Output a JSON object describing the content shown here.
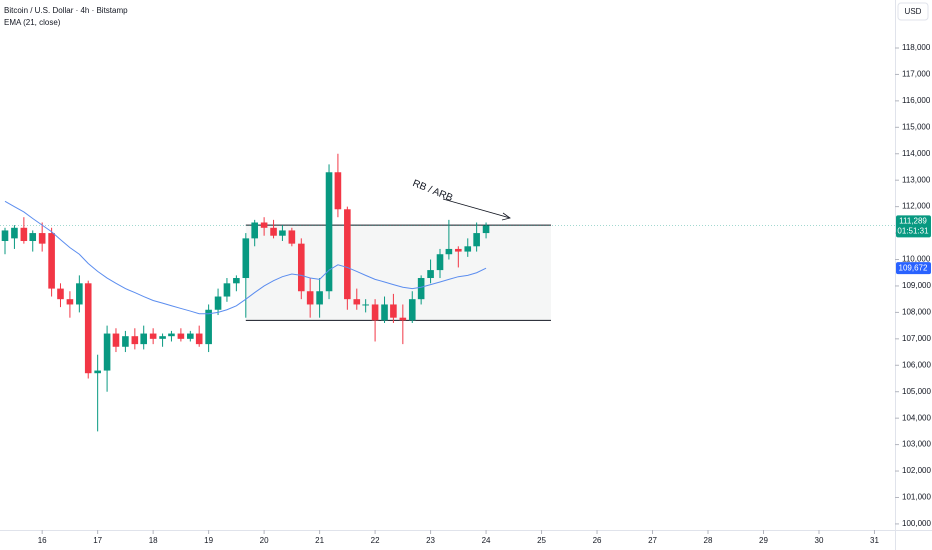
{
  "chart_data": {
    "type": "candlestick",
    "title": "Bitcoin / U.S. Dollar · 4h · Bitstamp",
    "currency": "USD",
    "x": [
      15.33,
      15.5,
      15.67,
      15.83,
      16,
      16.17,
      16.33,
      16.5,
      16.67,
      16.83,
      17,
      17.17,
      17.33,
      17.5,
      17.67,
      17.83,
      18,
      18.17,
      18.33,
      18.5,
      18.67,
      18.83,
      19,
      19.17,
      19.33,
      19.5,
      19.67,
      19.83,
      20,
      20.17,
      20.33,
      20.5,
      20.67,
      20.83,
      21,
      21.17,
      21.33,
      21.5,
      21.67,
      21.83,
      22,
      22.17,
      22.33,
      22.5,
      22.67,
      22.83,
      23,
      23.17,
      23.33,
      23.5,
      23.67,
      23.83,
      24
    ],
    "open": [
      110700,
      110800,
      111200,
      110700,
      111000,
      111000,
      108900,
      108500,
      108300,
      109100,
      105700,
      105800,
      107200,
      106700,
      107100,
      106800,
      107200,
      107000,
      107100,
      107200,
      107000,
      107200,
      106800,
      108100,
      108600,
      109100,
      109300,
      110800,
      111400,
      111200,
      110900,
      111100,
      110600,
      108800,
      108300,
      108800,
      113300,
      111900,
      108500,
      108300,
      108300,
      107700,
      108300,
      107800,
      107700,
      108500,
      109300,
      109600,
      110200,
      110400,
      110300,
      110500,
      111000
    ],
    "high": [
      111200,
      111300,
      111600,
      111100,
      111400,
      111200,
      109100,
      108800,
      109400,
      109200,
      106400,
      107500,
      107400,
      107300,
      107400,
      107500,
      107400,
      107200,
      107300,
      107400,
      107300,
      107500,
      108300,
      108900,
      109300,
      109400,
      111000,
      111500,
      111600,
      111500,
      111300,
      111200,
      110800,
      109300,
      109300,
      113600,
      114000,
      112000,
      108900,
      108500,
      108500,
      108600,
      108700,
      108300,
      108800,
      109400,
      110000,
      110400,
      111500,
      110500,
      110800,
      111400,
      111400
    ],
    "low": [
      110200,
      110400,
      110600,
      110300,
      110300,
      108600,
      108200,
      107800,
      108000,
      105500,
      103500,
      105000,
      106500,
      106500,
      106600,
      106600,
      106800,
      106700,
      106900,
      106900,
      106900,
      106700,
      106500,
      107900,
      108400,
      108800,
      107800,
      110500,
      110900,
      110800,
      110700,
      110500,
      108500,
      107800,
      107800,
      108500,
      111600,
      108100,
      108100,
      108000,
      106900,
      107600,
      107600,
      106800,
      107600,
      108300,
      109100,
      109300,
      110000,
      109700,
      110100,
      110300,
      110800
    ],
    "close": [
      111100,
      111200,
      110700,
      111000,
      110600,
      108900,
      108500,
      108300,
      109100,
      105700,
      105800,
      107200,
      106700,
      107100,
      106800,
      107200,
      107000,
      107100,
      107200,
      107000,
      107200,
      106800,
      108100,
      108600,
      109100,
      109300,
      110800,
      111400,
      111200,
      110900,
      111100,
      110600,
      108800,
      108300,
      108800,
      113300,
      111900,
      108500,
      108300,
      108300,
      107700,
      108300,
      107800,
      107700,
      108500,
      109300,
      109600,
      110200,
      110400,
      110300,
      110500,
      111000,
      111289
    ],
    "up_color": "#089981",
    "down_color": "#f23645",
    "overlays": [
      {
        "type": "line",
        "name": "EMA (21, close)",
        "color": "#5b8def",
        "values": [
          112200,
          112000,
          111800,
          111550,
          111300,
          111050,
          110750,
          110450,
          110200,
          109850,
          109550,
          109300,
          109100,
          108900,
          108750,
          108600,
          108450,
          108350,
          108250,
          108150,
          108050,
          107950,
          107950,
          108000,
          108100,
          108250,
          108500,
          108750,
          109000,
          109200,
          109350,
          109450,
          109400,
          109300,
          109250,
          109600,
          109800,
          109700,
          109550,
          109400,
          109250,
          109150,
          109050,
          108950,
          108900,
          108950,
          109050,
          109150,
          109250,
          109350,
          109400,
          109500,
          109672
        ]
      }
    ],
    "xlim": [
      15.24,
      31.37
    ],
    "xticks": [
      16,
      17,
      18,
      19,
      20,
      21,
      22,
      23,
      24,
      25,
      26,
      27,
      28,
      29,
      30,
      31
    ],
    "ylim": [
      99770,
      119815
    ],
    "yticks": [
      {
        "value": 100000,
        "label": "100,000"
      },
      {
        "value": 101000,
        "label": "101,000"
      },
      {
        "value": 102000,
        "label": "102,000"
      },
      {
        "value": 103000,
        "label": "103,000"
      },
      {
        "value": 104000,
        "label": "104,000"
      },
      {
        "value": 105000,
        "label": "105,000"
      },
      {
        "value": 106000,
        "label": "106,000"
      },
      {
        "value": 107000,
        "label": "107,000"
      },
      {
        "value": 108000,
        "label": "108,000"
      },
      {
        "value": 109000,
        "label": "109,000"
      },
      {
        "value": 110000,
        "label": "110,000"
      },
      {
        "value": 111000,
        "label": "111,000"
      },
      {
        "value": 112000,
        "label": "112,000"
      },
      {
        "value": 113000,
        "label": "113,000"
      },
      {
        "value": 114000,
        "label": "114,000"
      },
      {
        "value": 115000,
        "label": "115,000"
      },
      {
        "value": 116000,
        "label": "116,000"
      },
      {
        "value": 117000,
        "label": "117,000"
      },
      {
        "value": 118000,
        "label": "118,000"
      }
    ],
    "last_price": {
      "value": 111289,
      "label": "111,289",
      "countdown": "01:51:31"
    },
    "ema_last": {
      "value": 109672,
      "label": "109,672"
    },
    "range_box": {
      "x": [
        19.67,
        25.17
      ],
      "y": [
        107700,
        111300
      ]
    },
    "annotation": "RB / ARB"
  }
}
